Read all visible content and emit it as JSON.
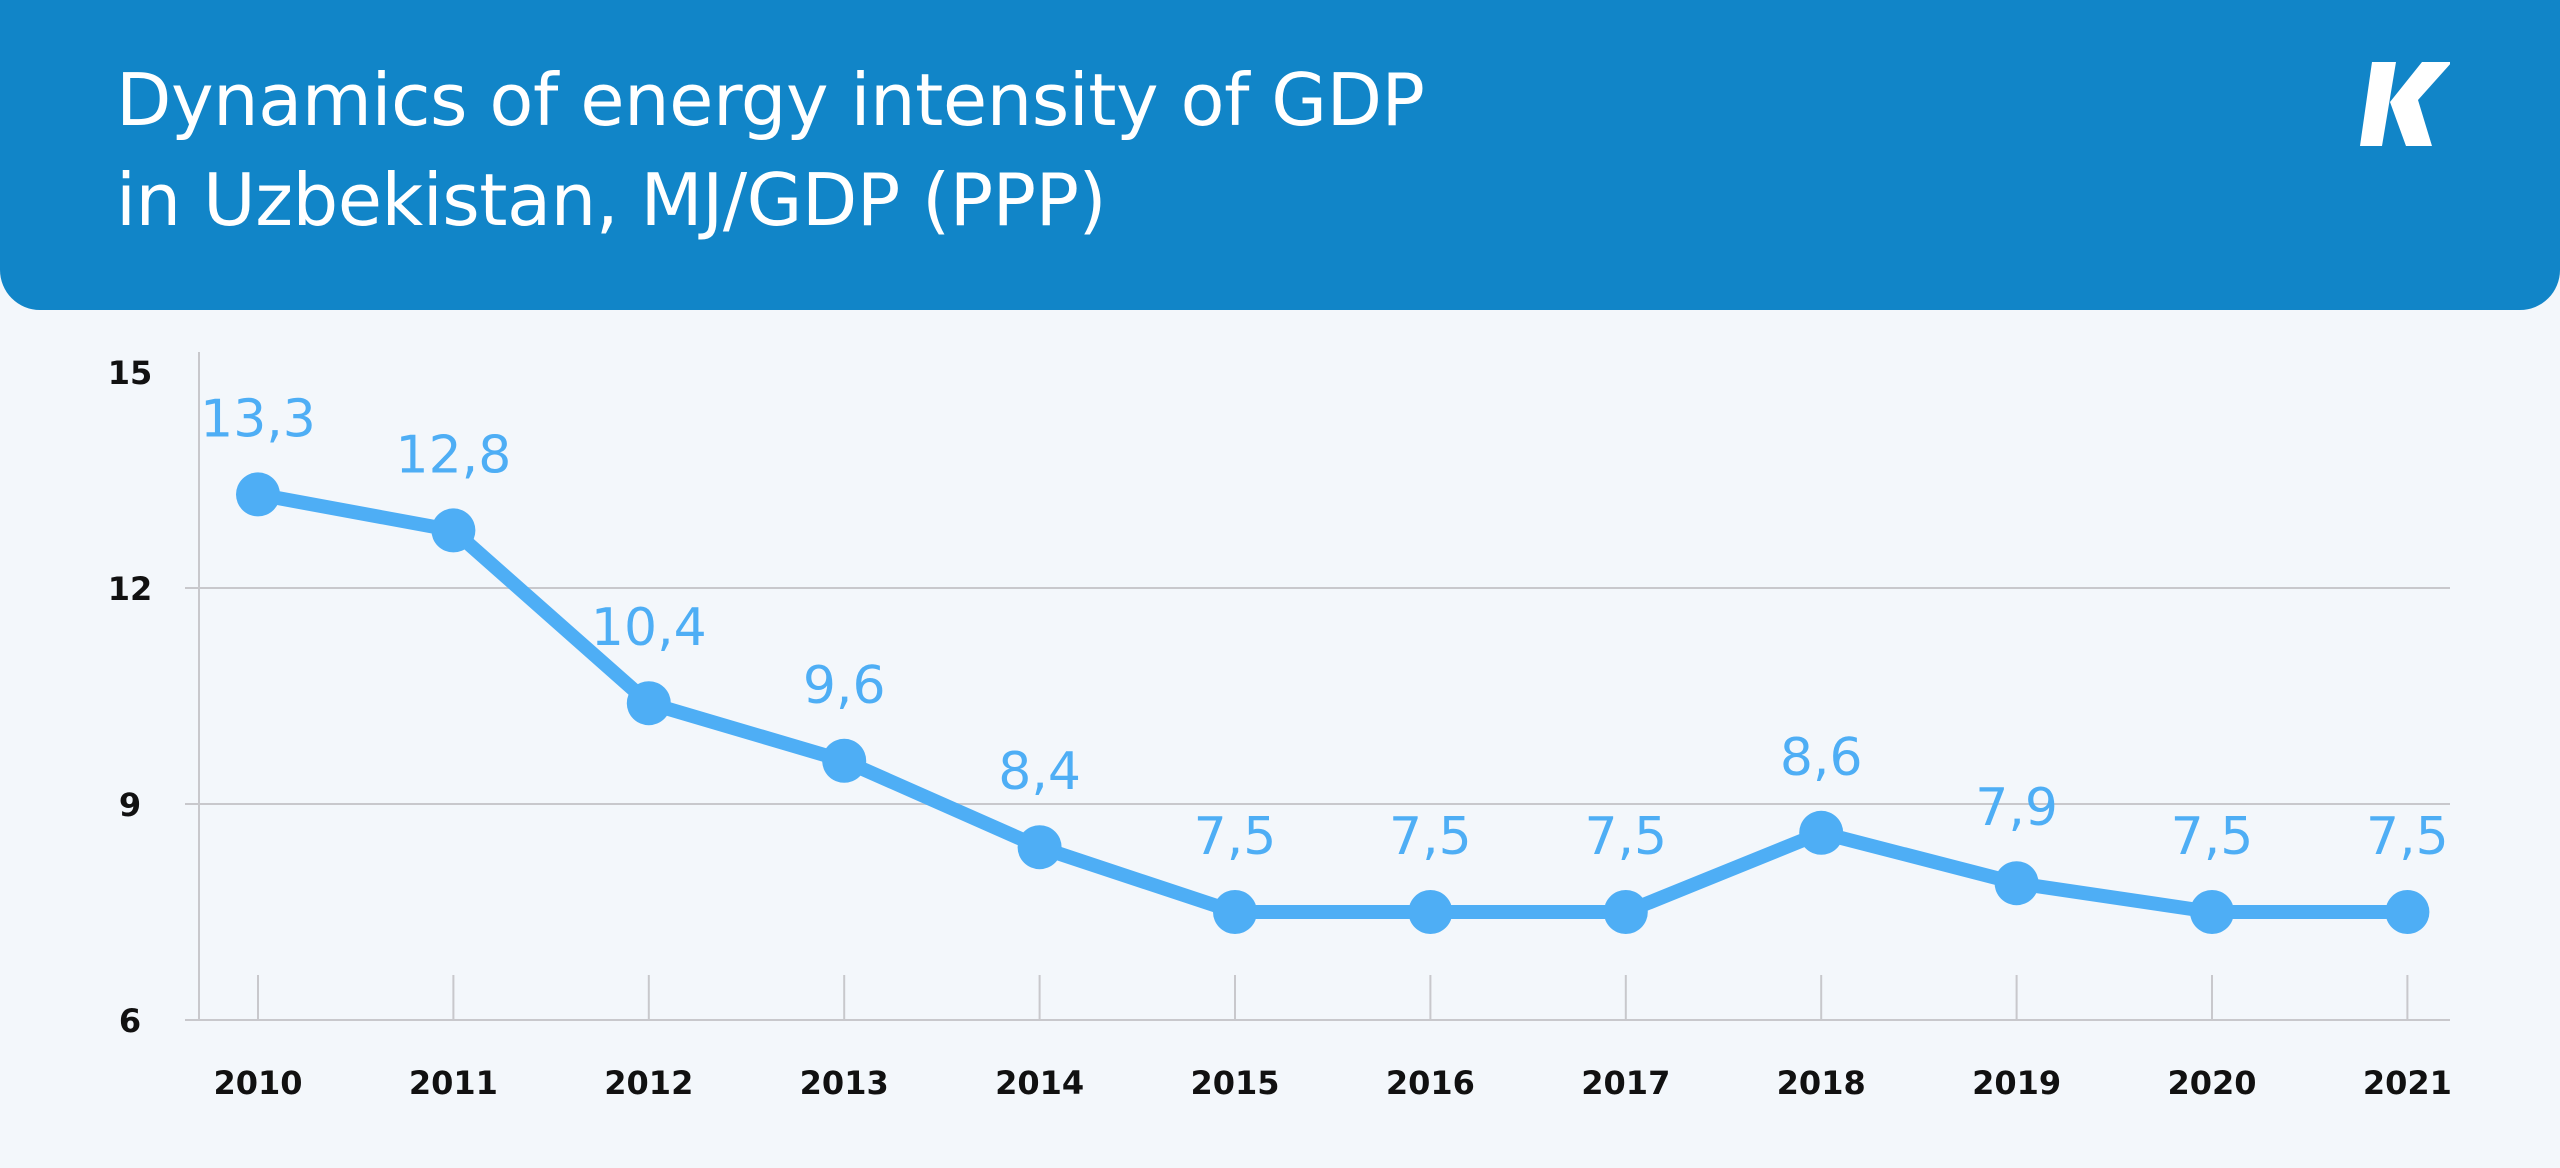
{
  "header": {
    "title_line1": "Dynamics of energy intensity of GDP",
    "title_line2": "in Uzbekistan, MJ/GDP (PPP)",
    "logo_text": "K"
  },
  "colors": {
    "header": "#1185c8",
    "series": "#4eaef5",
    "background": "#f3f7fb",
    "grid": "#c8c8cc"
  },
  "chart_data": {
    "type": "line",
    "title": "Dynamics of energy intensity of GDP in Uzbekistan, MJ/GDP (PPP)",
    "xlabel": "",
    "ylabel": "",
    "categories": [
      "2010",
      "2011",
      "2012",
      "2013",
      "2014",
      "2015",
      "2016",
      "2017",
      "2018",
      "2019",
      "2020",
      "2021"
    ],
    "values": [
      13.3,
      12.8,
      10.4,
      9.6,
      8.4,
      7.5,
      7.5,
      7.5,
      8.6,
      7.9,
      7.5,
      7.5
    ],
    "data_labels": [
      "13,3",
      "12,8",
      "10,4",
      "9,6",
      "8,4",
      "7,5",
      "7,5",
      "7,5",
      "8,6",
      "7,9",
      "7,5",
      "7,5"
    ],
    "ylim": [
      6,
      15
    ],
    "yticks": [
      6,
      9,
      12,
      15
    ],
    "ytick_labels": [
      "6",
      "9",
      "12",
      "15"
    ],
    "grid": true,
    "legend": "none"
  }
}
